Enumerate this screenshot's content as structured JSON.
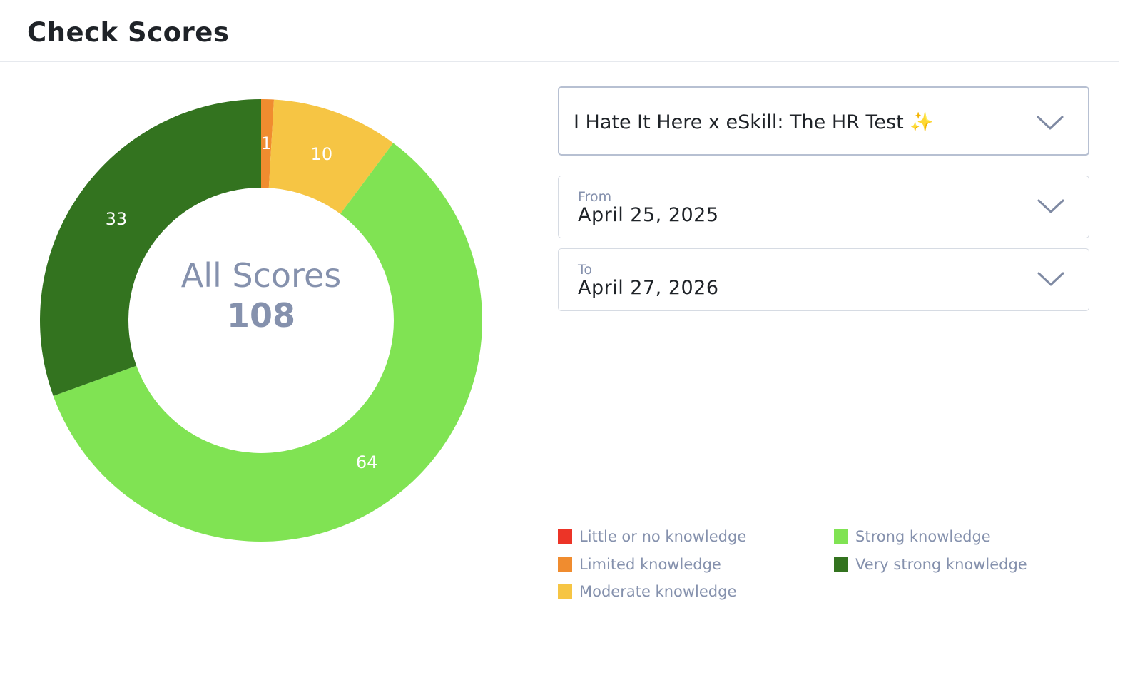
{
  "page": {
    "title": "Check Scores"
  },
  "filters": {
    "test": {
      "value": "I Hate It Here x eSkill: The HR Test ✨"
    },
    "from": {
      "label": "From",
      "value": "April 25, 2025"
    },
    "to": {
      "label": "To",
      "value": "April 27, 2026"
    }
  },
  "chart_data": {
    "type": "pie",
    "center_label": "All Scores",
    "total": 108,
    "categories": [
      "Little or no knowledge",
      "Limited knowledge",
      "Moderate knowledge",
      "Strong knowledge",
      "Very strong knowledge"
    ],
    "values": [
      0,
      1,
      10,
      64,
      33
    ],
    "colors": [
      "#ec3427",
      "#f08c2f",
      "#f6c544",
      "#80e353",
      "#33731f"
    ],
    "legend_position": "bottom-right"
  },
  "icons": {
    "dropdown": "chevron-down-icon"
  }
}
